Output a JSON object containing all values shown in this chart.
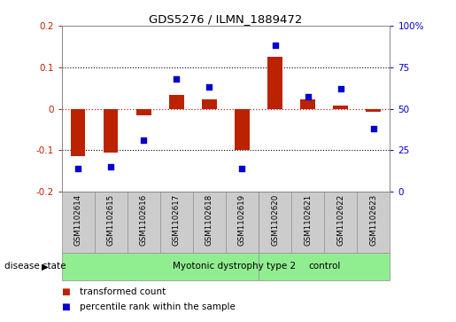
{
  "title": "GDS5276 / ILMN_1889472",
  "samples": [
    "GSM1102614",
    "GSM1102615",
    "GSM1102616",
    "GSM1102617",
    "GSM1102618",
    "GSM1102619",
    "GSM1102620",
    "GSM1102621",
    "GSM1102622",
    "GSM1102623"
  ],
  "red_values": [
    -0.115,
    -0.105,
    -0.015,
    0.033,
    0.022,
    -0.1,
    0.125,
    0.022,
    0.008,
    -0.008
  ],
  "blue_values": [
    14,
    15,
    31,
    68,
    63,
    14,
    88,
    57,
    62,
    38
  ],
  "groups": [
    {
      "label": "Myotonic dystrophy type 2",
      "start": 0,
      "end": 6,
      "color": "#90EE90"
    },
    {
      "label": "control",
      "start": 6,
      "end": 10,
      "color": "#90EE90"
    }
  ],
  "ylim_left": [
    -0.2,
    0.2
  ],
  "ylim_right": [
    0,
    100
  ],
  "yticks_left": [
    -0.2,
    -0.1,
    0.0,
    0.1,
    0.2
  ],
  "yticks_right": [
    0,
    25,
    50,
    75,
    100
  ],
  "ytick_labels_left": [
    "-0.2",
    "-0.1",
    "0",
    "0.1",
    "0.2"
  ],
  "ytick_labels_right": [
    "0",
    "25",
    "50",
    "75",
    "100%"
  ],
  "red_color": "#BB2200",
  "blue_color": "#0000CC",
  "dotted_line_color": "#000000",
  "dotted_red_color": "#CC2222",
  "bar_width": 0.45,
  "cell_color": "#CCCCCC",
  "border_color": "#999999",
  "disease_state_label": "disease state",
  "legend_red": "transformed count",
  "legend_blue": "percentile rank within the sample",
  "group_separator": 5.5,
  "n_group1": 6,
  "n_group2": 4
}
